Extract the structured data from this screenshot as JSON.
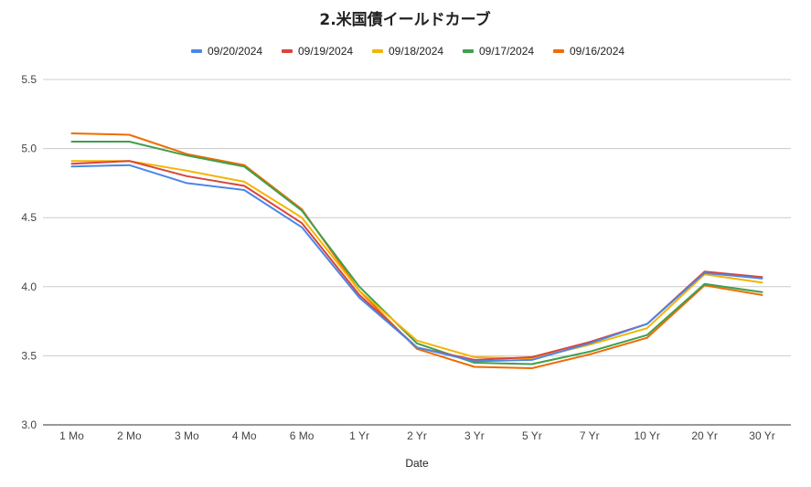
{
  "chart_data": {
    "type": "line",
    "title": "2.米国債イールドカーブ",
    "xlabel": "Date",
    "ylabel": "",
    "ylim": [
      3.0,
      5.5
    ],
    "yticks": [
      "3.0",
      "3.5",
      "4.0",
      "4.5",
      "5.0",
      "5.5"
    ],
    "grid": true,
    "legend_position": "top",
    "categories": [
      "1 Mo",
      "2 Mo",
      "3 Mo",
      "4 Mo",
      "6 Mo",
      "1 Yr",
      "2 Yr",
      "3 Yr",
      "5 Yr",
      "7 Yr",
      "10 Yr",
      "20 Yr",
      "30 Yr"
    ],
    "series": [
      {
        "name": "09/20/2024",
        "color": "#4a86e8",
        "values": [
          4.87,
          4.88,
          4.75,
          4.7,
          4.43,
          3.92,
          3.56,
          3.46,
          3.47,
          3.59,
          3.73,
          4.1,
          4.06
        ]
      },
      {
        "name": "09/19/2024",
        "color": "#d9453b",
        "values": [
          4.89,
          4.91,
          4.8,
          4.73,
          4.46,
          3.94,
          3.56,
          3.47,
          3.49,
          3.6,
          3.73,
          4.11,
          4.07
        ]
      },
      {
        "name": "09/18/2024",
        "color": "#f4b400",
        "values": [
          4.91,
          4.91,
          4.84,
          4.76,
          4.5,
          3.97,
          3.61,
          3.49,
          3.48,
          3.58,
          3.7,
          4.09,
          4.03
        ]
      },
      {
        "name": "09/17/2024",
        "color": "#3f9f4f",
        "values": [
          5.05,
          5.05,
          4.95,
          4.87,
          4.55,
          4.0,
          3.59,
          3.45,
          3.44,
          3.53,
          3.65,
          4.02,
          3.96
        ]
      },
      {
        "name": "09/16/2024",
        "color": "#ef6c00",
        "values": [
          5.11,
          5.1,
          4.96,
          4.88,
          4.56,
          3.97,
          3.55,
          3.42,
          3.41,
          3.51,
          3.63,
          4.01,
          3.94
        ]
      }
    ]
  }
}
